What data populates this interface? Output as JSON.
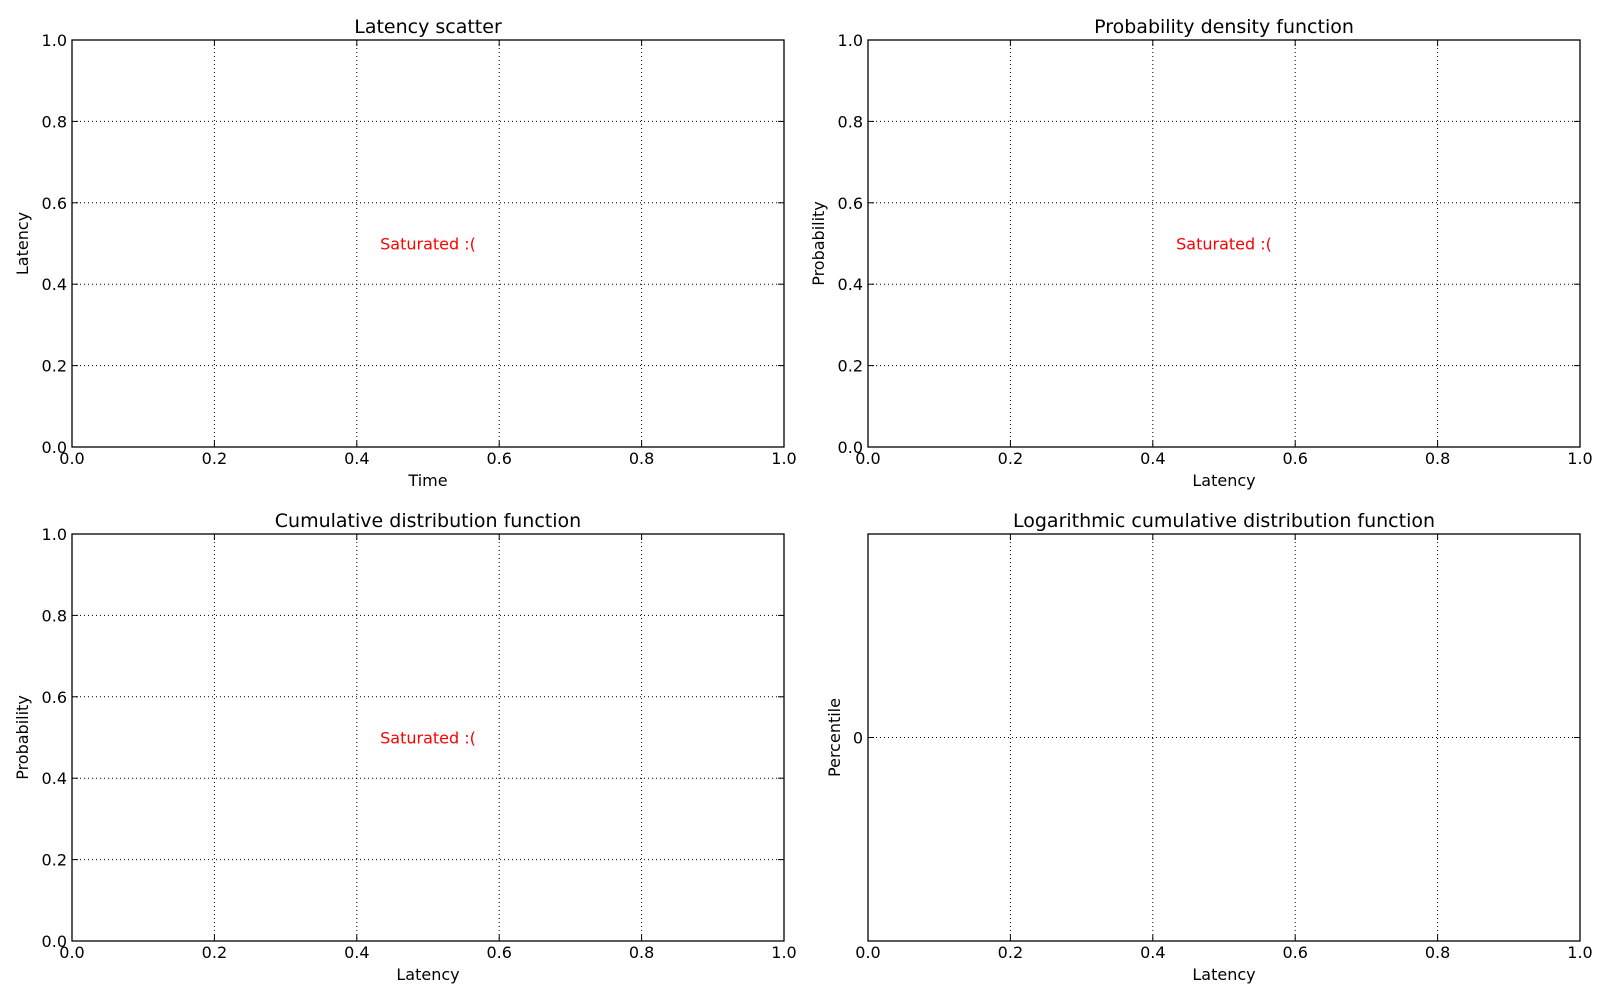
{
  "chart_data": [
    {
      "type": "scatter",
      "title": "Latency scatter",
      "xlabel": "Time",
      "ylabel": "Latency",
      "xlim": [
        0,
        1
      ],
      "ylim": [
        0,
        1
      ],
      "xticks": [
        "0.0",
        "0.2",
        "0.4",
        "0.6",
        "0.8",
        "1.0"
      ],
      "yticks": [
        "0.0",
        "0.2",
        "0.4",
        "0.6",
        "0.8",
        "1.0"
      ],
      "grid": true,
      "series": [],
      "annotation": {
        "text": "Saturated :(",
        "x": 0.5,
        "y": 0.5,
        "color": "#ff0000"
      }
    },
    {
      "type": "line",
      "title": "Probability density function",
      "xlabel": "Latency",
      "ylabel": "Probability",
      "xlim": [
        0,
        1
      ],
      "ylim": [
        0,
        1
      ],
      "xticks": [
        "0.0",
        "0.2",
        "0.4",
        "0.6",
        "0.8",
        "1.0"
      ],
      "yticks": [
        "0.0",
        "0.2",
        "0.4",
        "0.6",
        "0.8",
        "1.0"
      ],
      "grid": true,
      "series": [],
      "annotation": {
        "text": "Saturated :(",
        "x": 0.5,
        "y": 0.5,
        "color": "#ff0000"
      }
    },
    {
      "type": "line",
      "title": "Cumulative distribution function",
      "xlabel": "Latency",
      "ylabel": "Probability",
      "xlim": [
        0,
        1
      ],
      "ylim": [
        0,
        1
      ],
      "xticks": [
        "0.0",
        "0.2",
        "0.4",
        "0.6",
        "0.8",
        "1.0"
      ],
      "yticks": [
        "0.0",
        "0.2",
        "0.4",
        "0.6",
        "0.8",
        "1.0"
      ],
      "grid": true,
      "series": [],
      "annotation": {
        "text": "Saturated :(",
        "x": 0.5,
        "y": 0.5,
        "color": "#ff0000"
      }
    },
    {
      "type": "line",
      "title": "Logarithmic cumulative distribution function",
      "xlabel": "Latency",
      "ylabel": "Percentile",
      "xlim": [
        0,
        1
      ],
      "ylim": [
        -1,
        1
      ],
      "xticks": [
        "0.0",
        "0.2",
        "0.4",
        "0.6",
        "0.8",
        "1.0"
      ],
      "yticks": [
        "0"
      ],
      "grid": true,
      "series": []
    }
  ]
}
